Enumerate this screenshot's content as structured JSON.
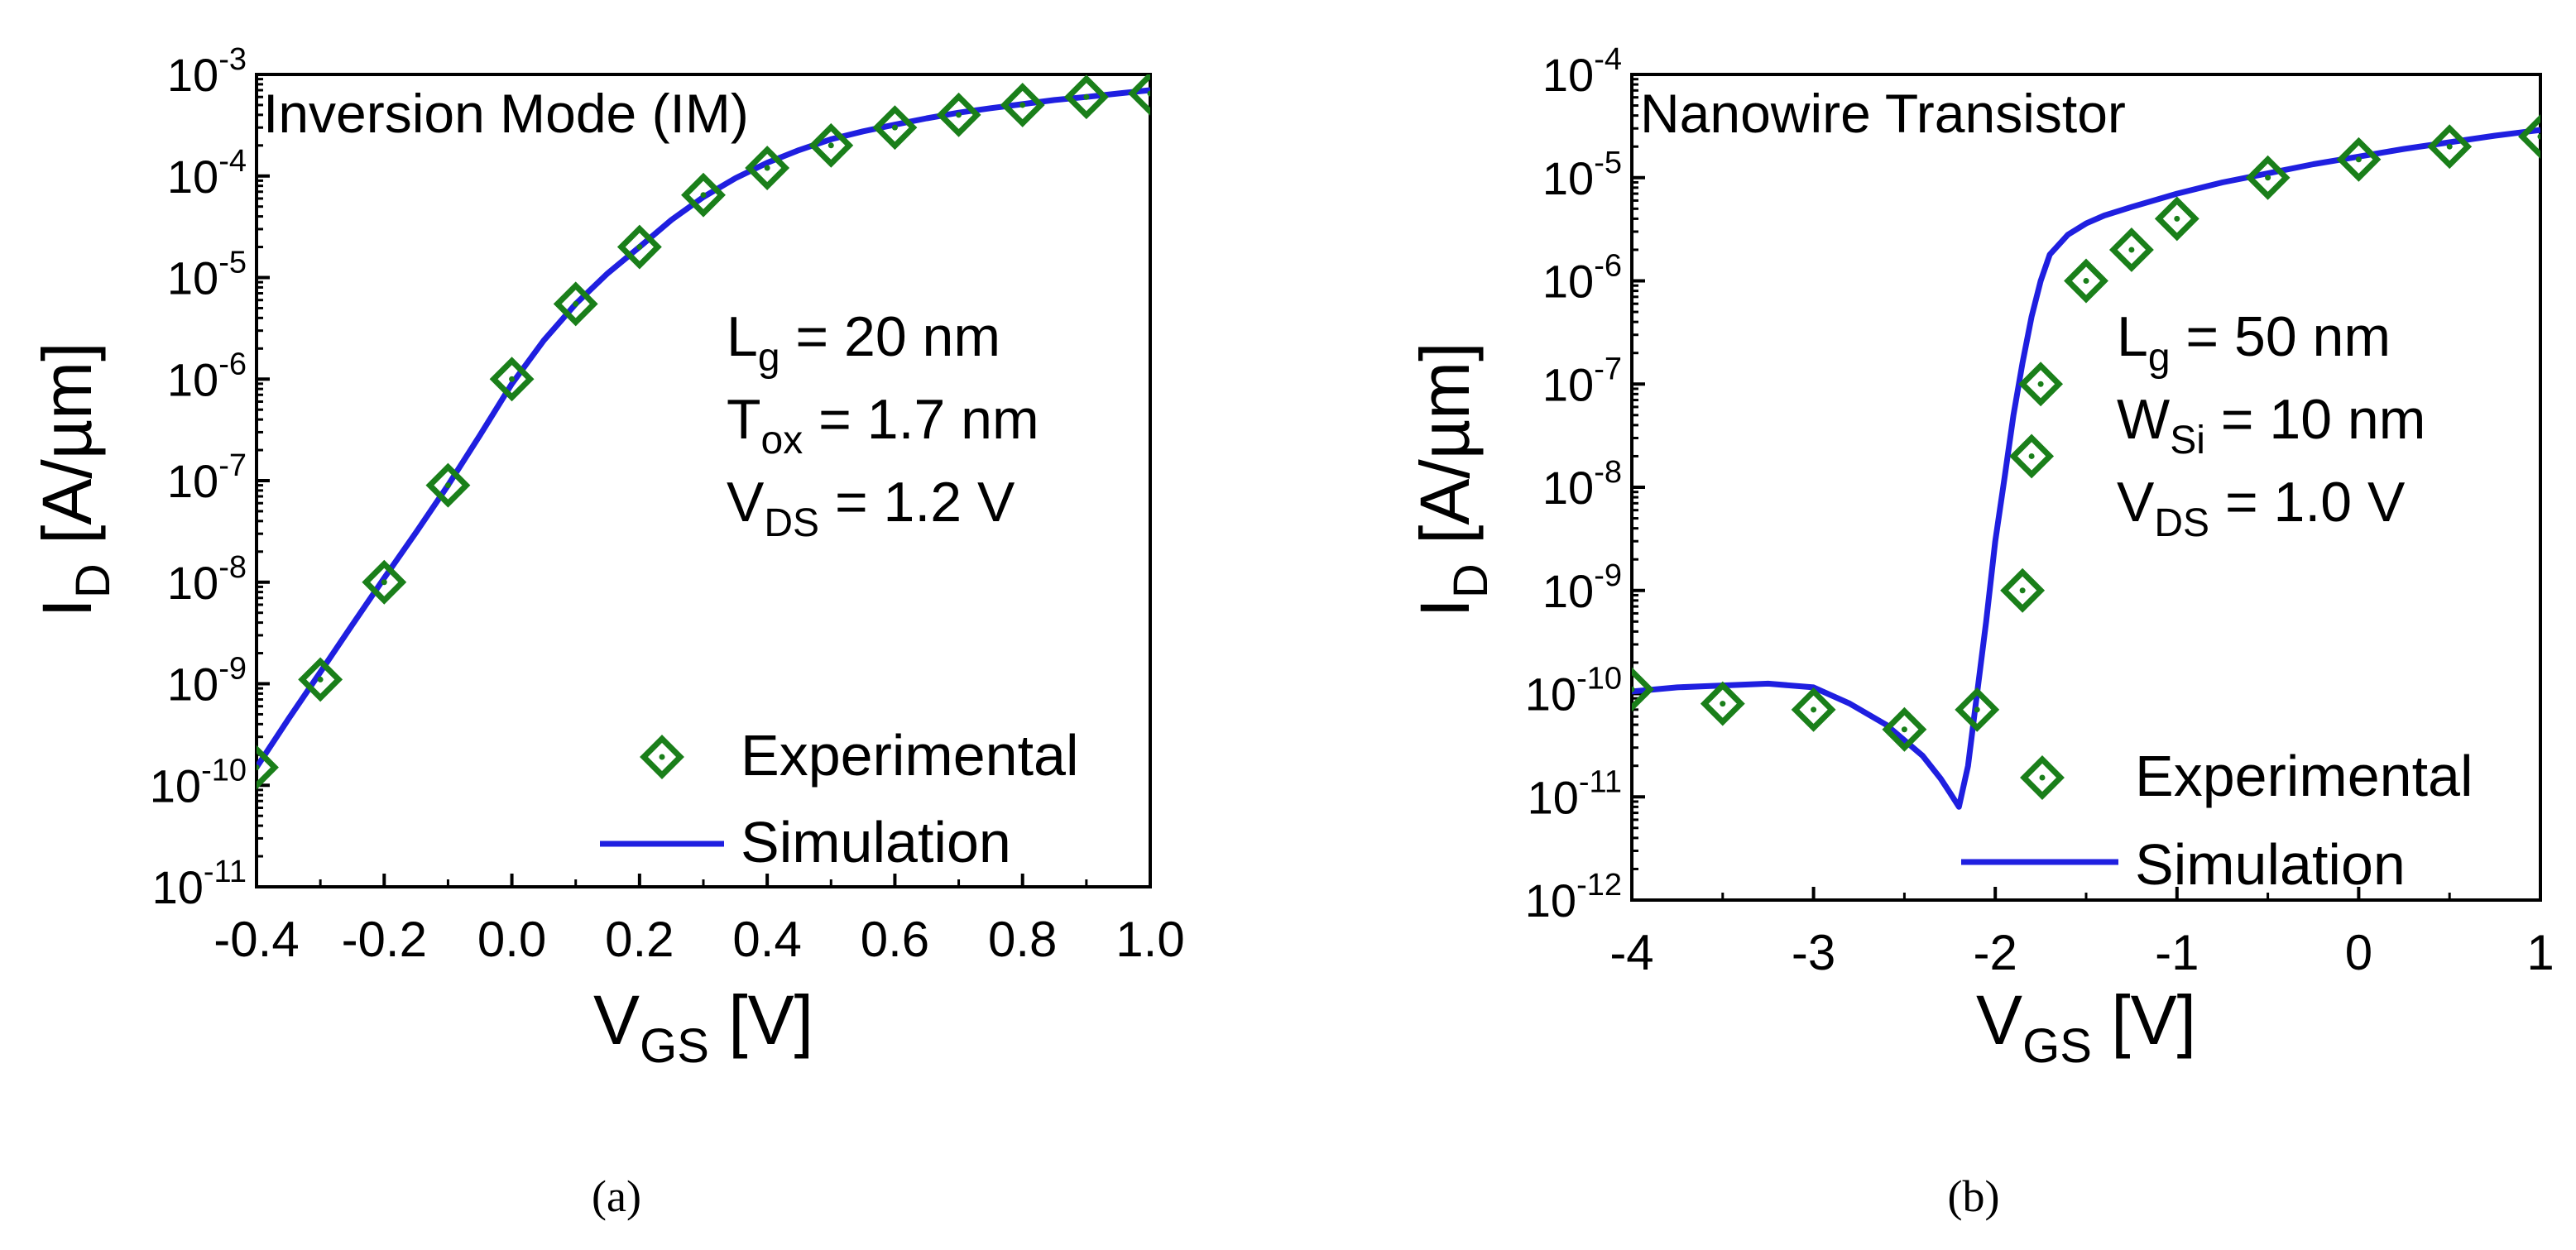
{
  "figure": {
    "captions": [
      "(a)",
      "(b)"
    ]
  },
  "chart_data": [
    {
      "type": "scatter+line",
      "title": "Inversion Mode (IM)",
      "xlabel": {
        "main": "V",
        "sub": "GS",
        "unit": " [V]"
      },
      "ylabel": {
        "main": "I",
        "sub": "D",
        "unit": " [A/µm]"
      },
      "xlim": [
        -0.4,
        1.0
      ],
      "ylim_log10": [
        -11,
        -3
      ],
      "x_ticks": [
        -0.4,
        -0.2,
        0.0,
        0.2,
        0.4,
        0.6,
        0.8,
        1.0
      ],
      "x_tick_labels": [
        "-0.4",
        "-0.2",
        "0.0",
        "0.2",
        "0.4",
        "0.6",
        "0.8",
        "1.0"
      ],
      "y_tick_exponents": [
        -3,
        -4,
        -5,
        -6,
        -7,
        -8,
        -9,
        -10,
        -11
      ],
      "y_tick_labels": [
        "-3",
        "-4",
        "-5",
        "-6",
        "-7",
        "-8",
        "-9",
        "-10",
        "-11"
      ],
      "y_tick_base": "10",
      "annotations": [
        {
          "main": "L",
          "sub": "g",
          "rest": " = 20 nm"
        },
        {
          "main": "T",
          "sub": "ox",
          "rest": " = 1.7 nm"
        },
        {
          "main": "V",
          "sub": "DS",
          "rest": " = 1.2 V"
        }
      ],
      "legend": {
        "position": "bottom-right",
        "entries": [
          "Experimental",
          "Simulation"
        ]
      },
      "series": [
        {
          "name": "Experimental",
          "marker": "diamond",
          "color": "#1a7f1a",
          "x": [
            -0.4,
            -0.3,
            -0.2,
            -0.1,
            0.0,
            0.1,
            0.2,
            0.3,
            0.4,
            0.5,
            0.6,
            0.7,
            0.8,
            0.9,
            1.0
          ],
          "y": [
            1.5e-10,
            1.1e-09,
            1e-08,
            9e-08,
            1e-06,
            5.5e-06,
            2e-05,
            6.5e-05,
            0.00012,
            0.0002,
            0.0003,
            0.0004,
            0.0005,
            0.0006,
            0.00065
          ]
        },
        {
          "name": "Simulation",
          "line": "solid",
          "color": "#1f1fe0",
          "x": [
            -0.4,
            -0.35,
            -0.3,
            -0.25,
            -0.2,
            -0.15,
            -0.1,
            -0.05,
            0.0,
            0.05,
            0.1,
            0.15,
            0.2,
            0.25,
            0.3,
            0.35,
            0.4,
            0.45,
            0.5,
            0.55,
            0.6,
            0.65,
            0.7,
            0.75,
            0.8,
            0.85,
            0.9,
            0.95,
            1.0
          ],
          "y": [
            1.5e-10,
            4.5e-10,
            1.3e-09,
            3.8e-09,
            1.1e-08,
            3.1e-08,
            9e-08,
            2.8e-07,
            9e-07,
            2.4e-06,
            5.5e-06,
            1.1e-05,
            2e-05,
            3.7e-05,
            6.2e-05,
            9.5e-05,
            0.000135,
            0.00018,
            0.00023,
            0.000275,
            0.00032,
            0.00037,
            0.00042,
            0.000465,
            0.00051,
            0.00056,
            0.0006,
            0.00065,
            0.0007
          ]
        }
      ]
    },
    {
      "type": "scatter+line",
      "title": "Nanowire Transistor",
      "xlabel": {
        "main": "V",
        "sub": "GS",
        "unit": " [V]"
      },
      "ylabel": {
        "main": "I",
        "sub": "D",
        "unit": " [A/µm]"
      },
      "xlim": [
        -4,
        1
      ],
      "ylim_log10": [
        -12,
        -4
      ],
      "x_ticks": [
        -4,
        -3,
        -2,
        -1,
        0,
        1
      ],
      "x_tick_labels": [
        "-4",
        "-3",
        "-2",
        "-1",
        "0",
        "1"
      ],
      "y_tick_exponents": [
        -4,
        -5,
        -6,
        -7,
        -8,
        -9,
        -10,
        -11,
        -12
      ],
      "y_tick_labels": [
        "-4",
        "-5",
        "-6",
        "-7",
        "-8",
        "-9",
        "-10",
        "-11",
        "-12"
      ],
      "y_tick_base": "10",
      "annotations": [
        {
          "main": "L",
          "sub": "g",
          "rest": " = 50 nm"
        },
        {
          "main": "W",
          "sub": "Si",
          "rest": " = 10 nm"
        },
        {
          "main": "V",
          "sub": "DS",
          "rest": " = 1.0 V"
        }
      ],
      "legend": {
        "position": "bottom-right",
        "entries": [
          "Experimental",
          "Simulation"
        ]
      },
      "series": [
        {
          "name": "Experimental",
          "marker": "diamond",
          "color": "#1a7f1a",
          "x": [
            -4.0,
            -3.5,
            -3.0,
            -2.5,
            -2.1,
            -1.85,
            -1.8,
            -1.75,
            -1.5,
            -1.25,
            -1.0,
            -0.5,
            0.0,
            0.5,
            1.0
          ],
          "y": [
            1.1e-10,
            8e-11,
            7e-11,
            4.5e-11,
            7e-11,
            1e-09,
            2e-08,
            1e-07,
            1e-06,
            2e-06,
            4e-06,
            1e-05,
            1.5e-05,
            2e-05,
            2.5e-05
          ]
        },
        {
          "name": "Simulation",
          "line": "solid",
          "color": "#1f1fe0",
          "x": [
            -4.0,
            -3.75,
            -3.5,
            -3.25,
            -3.0,
            -2.8,
            -2.6,
            -2.4,
            -2.3,
            -2.25,
            -2.2,
            -2.15,
            -2.1,
            -2.05,
            -2.0,
            -1.95,
            -1.9,
            -1.85,
            -1.8,
            -1.75,
            -1.7,
            -1.6,
            -1.5,
            -1.4,
            -1.25,
            -1.0,
            -0.75,
            -0.5,
            -0.25,
            0.0,
            0.25,
            0.5,
            0.75,
            1.0
          ],
          "y": [
            1.05e-10,
            1.15e-10,
            1.2e-10,
            1.25e-10,
            1.15e-10,
            8e-11,
            5e-11,
            2.5e-11,
            1.5e-11,
            1.1e-11,
            8e-12,
            2e-11,
            1e-10,
            5e-10,
            3e-09,
            1.2e-08,
            5e-08,
            1.6e-07,
            4.5e-07,
            1e-06,
            1.8e-06,
            2.8e-06,
            3.6e-06,
            4.3e-06,
            5.2e-06,
            7e-06,
            9e-06,
            1.1e-05,
            1.35e-05,
            1.6e-05,
            1.9e-05,
            2.2e-05,
            2.55e-05,
            2.9e-05
          ]
        }
      ]
    }
  ]
}
